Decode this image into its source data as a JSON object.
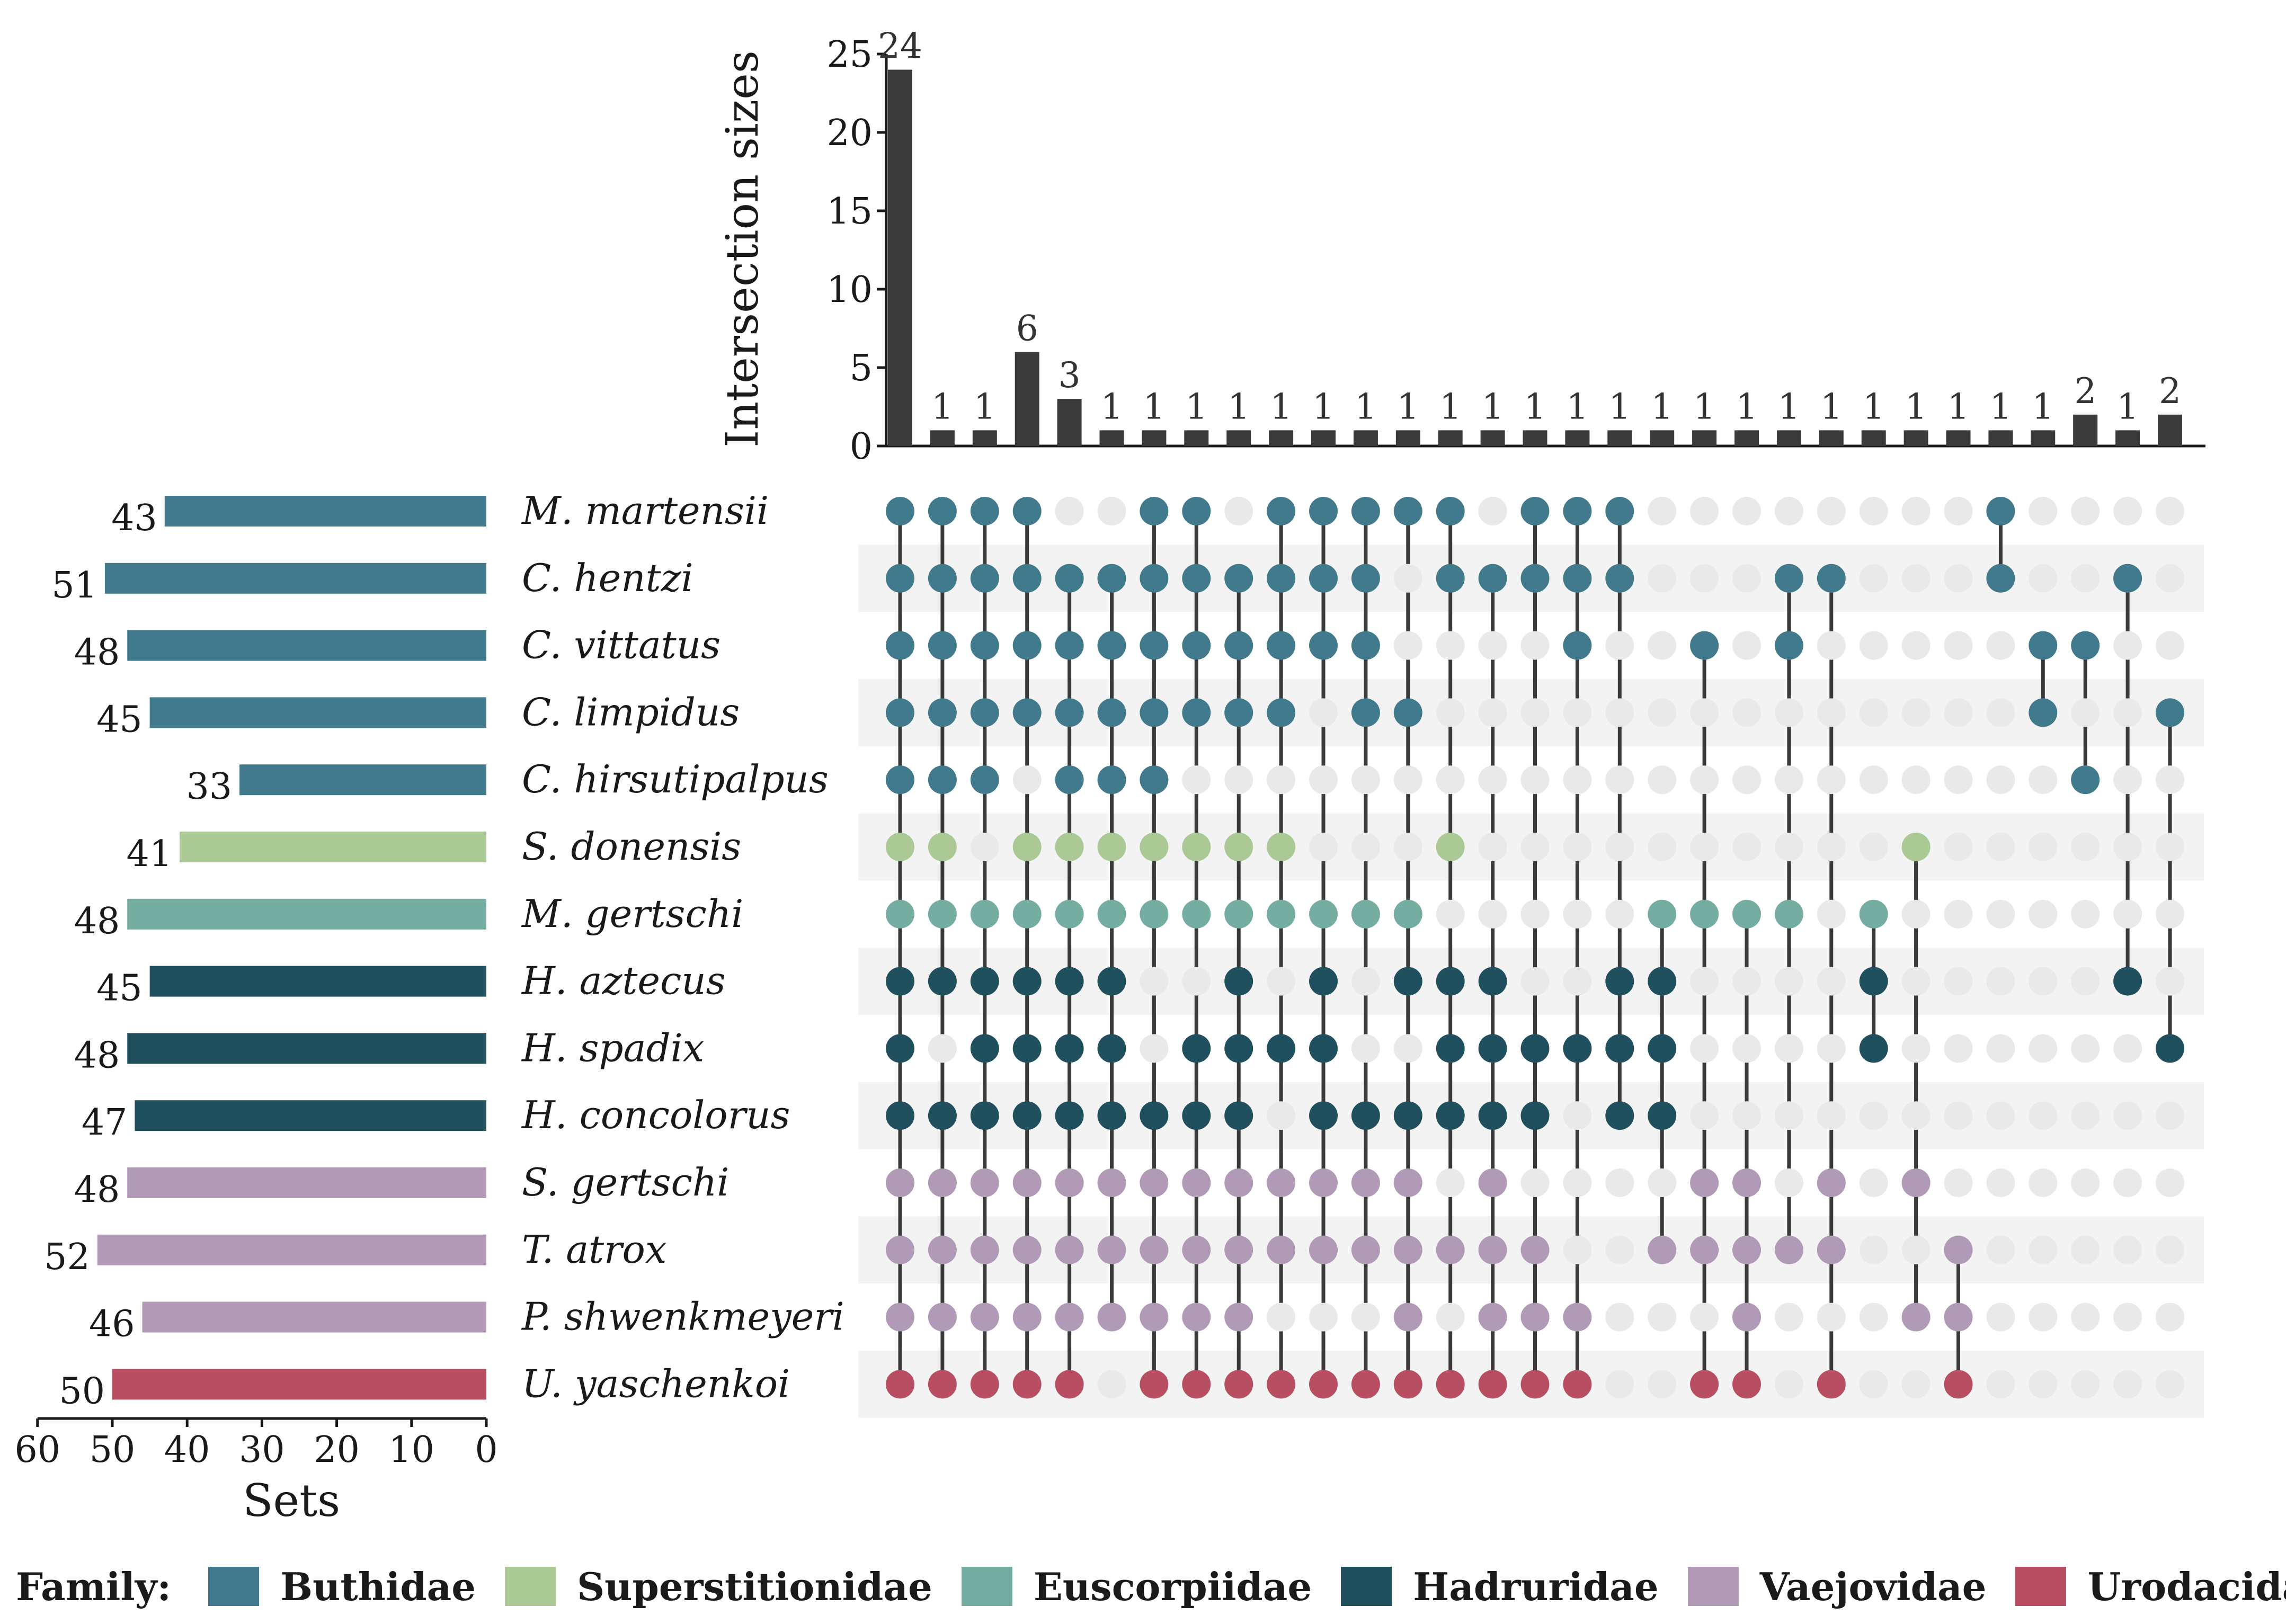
{
  "chart_data": {
    "type": "upset",
    "ylabel": "Intersection sizes",
    "xlabel_sets": "Sets",
    "y_ticks": [
      0,
      5,
      10,
      15,
      20,
      25
    ],
    "ylim": [
      0,
      25
    ],
    "set_axis_ticks": [
      60,
      50,
      40,
      30,
      20,
      10,
      0
    ],
    "set_axis_range": [
      0,
      60
    ],
    "sets": [
      {
        "name": "M. martensii",
        "size": 43,
        "family": "Buthidae"
      },
      {
        "name": "C. hentzi",
        "size": 51,
        "family": "Buthidae"
      },
      {
        "name": "C. vittatus",
        "size": 48,
        "family": "Buthidae"
      },
      {
        "name": "C. limpidus",
        "size": 45,
        "family": "Buthidae"
      },
      {
        "name": "C. hirsutipalpus",
        "size": 33,
        "family": "Buthidae"
      },
      {
        "name": "S. donensis",
        "size": 41,
        "family": "Superstitionidae"
      },
      {
        "name": "M. gertschi",
        "size": 48,
        "family": "Euscorpiidae"
      },
      {
        "name": "H. aztecus",
        "size": 45,
        "family": "Hadruridae"
      },
      {
        "name": "H. spadix",
        "size": 48,
        "family": "Hadruridae"
      },
      {
        "name": "H. concolorus",
        "size": 47,
        "family": "Hadruridae"
      },
      {
        "name": "S. gertschi",
        "size": 48,
        "family": "Vaejovidae"
      },
      {
        "name": "T. atrox",
        "size": 52,
        "family": "Vaejovidae"
      },
      {
        "name": "P. shwenkmeyeri",
        "size": 46,
        "family": "Vaejovidae"
      },
      {
        "name": "U. yaschenkoi",
        "size": 50,
        "family": "Urodacidae"
      }
    ],
    "intersections": [
      {
        "size": 24,
        "members": [
          0,
          1,
          2,
          3,
          4,
          5,
          6,
          7,
          8,
          9,
          10,
          11,
          12,
          13
        ]
      },
      {
        "size": 1,
        "members": [
          0,
          1,
          2,
          3,
          4,
          5,
          6,
          7,
          9,
          10,
          11,
          12,
          13
        ]
      },
      {
        "size": 1,
        "members": [
          0,
          1,
          2,
          3,
          4,
          6,
          7,
          8,
          9,
          10,
          11,
          12,
          13
        ]
      },
      {
        "size": 6,
        "members": [
          0,
          1,
          2,
          3,
          5,
          6,
          7,
          8,
          9,
          10,
          11,
          12,
          13
        ]
      },
      {
        "size": 3,
        "members": [
          1,
          2,
          3,
          4,
          5,
          6,
          7,
          8,
          9,
          10,
          11,
          12,
          13
        ]
      },
      {
        "size": 1,
        "members": [
          1,
          2,
          3,
          4,
          5,
          6,
          7,
          8,
          9,
          10,
          11,
          12
        ]
      },
      {
        "size": 1,
        "members": [
          0,
          1,
          2,
          3,
          4,
          5,
          6,
          9,
          10,
          11,
          12,
          13
        ]
      },
      {
        "size": 1,
        "members": [
          0,
          1,
          2,
          3,
          5,
          6,
          8,
          9,
          10,
          11,
          12,
          13
        ]
      },
      {
        "size": 1,
        "members": [
          1,
          2,
          3,
          5,
          6,
          7,
          8,
          9,
          10,
          11,
          12,
          13
        ]
      },
      {
        "size": 1,
        "members": [
          0,
          1,
          2,
          3,
          5,
          6,
          8,
          10,
          11,
          13
        ]
      },
      {
        "size": 1,
        "members": [
          0,
          1,
          2,
          6,
          7,
          8,
          9,
          10,
          11,
          13
        ]
      },
      {
        "size": 1,
        "members": [
          0,
          1,
          2,
          3,
          6,
          9,
          10,
          11,
          13
        ]
      },
      {
        "size": 1,
        "members": [
          0,
          3,
          6,
          7,
          9,
          10,
          11,
          12,
          13
        ]
      },
      {
        "size": 1,
        "members": [
          0,
          1,
          5,
          7,
          8,
          9,
          11,
          13
        ]
      },
      {
        "size": 1,
        "members": [
          1,
          7,
          8,
          9,
          10,
          11,
          12,
          13
        ]
      },
      {
        "size": 1,
        "members": [
          0,
          1,
          8,
          9,
          11,
          12,
          13
        ]
      },
      {
        "size": 1,
        "members": [
          0,
          1,
          2,
          8,
          12,
          13
        ]
      },
      {
        "size": 1,
        "members": [
          0,
          1,
          7,
          8,
          9
        ]
      },
      {
        "size": 1,
        "members": [
          6,
          7,
          8,
          9,
          11
        ]
      },
      {
        "size": 1,
        "members": [
          2,
          6,
          10,
          11,
          13
        ]
      },
      {
        "size": 1,
        "members": [
          6,
          10,
          11,
          12,
          13
        ]
      },
      {
        "size": 1,
        "members": [
          1,
          2,
          6,
          11
        ]
      },
      {
        "size": 1,
        "members": [
          1,
          10,
          11,
          13
        ]
      },
      {
        "size": 1,
        "members": [
          6,
          7,
          8
        ]
      },
      {
        "size": 1,
        "members": [
          5,
          10,
          12
        ]
      },
      {
        "size": 1,
        "members": [
          11,
          12,
          13
        ]
      },
      {
        "size": 1,
        "members": [
          0,
          1
        ]
      },
      {
        "size": 1,
        "members": [
          2,
          3
        ]
      },
      {
        "size": 2,
        "members": [
          2,
          4
        ]
      },
      {
        "size": 1,
        "members": [
          1,
          7
        ]
      },
      {
        "size": 2,
        "members": [
          3,
          8
        ]
      }
    ]
  },
  "legend": {
    "title": "Family:",
    "items": [
      {
        "label": "Buthidae",
        "color": "#417a8c"
      },
      {
        "label": "Superstitionidae",
        "color": "#abc995"
      },
      {
        "label": "Euscorpiidae",
        "color": "#75ada0"
      },
      {
        "label": "Hadruridae",
        "color": "#20505e"
      },
      {
        "label": "Vaejovidae",
        "color": "#b09ab5"
      },
      {
        "label": "Urodacidae",
        "color": "#b84e62"
      }
    ]
  },
  "colors": {
    "bar": "#3a3a3a",
    "inactive_dot": "#e9e9e9",
    "stripe": "#f3f3f3",
    "connector": "#3a3a3a"
  }
}
